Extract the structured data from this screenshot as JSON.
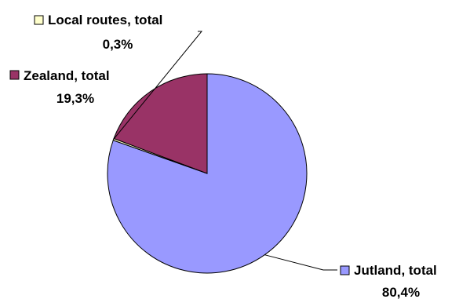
{
  "chart_data": {
    "type": "pie",
    "title": "",
    "slices": [
      {
        "label": "Jutland, total",
        "value": 80.4,
        "value_label": "80,4%",
        "color": "#9999FF"
      },
      {
        "label": "Local routes, total",
        "value": 0.3,
        "value_label": "0,3%",
        "color": "#FFFFCC"
      },
      {
        "label": "Zealand, total",
        "value": 19.3,
        "value_label": "19,3%",
        "color": "#993366"
      }
    ],
    "start_angle_deg": 0,
    "direction": "clockwise",
    "grid": false,
    "legend": "none (labels with leader lines)"
  }
}
